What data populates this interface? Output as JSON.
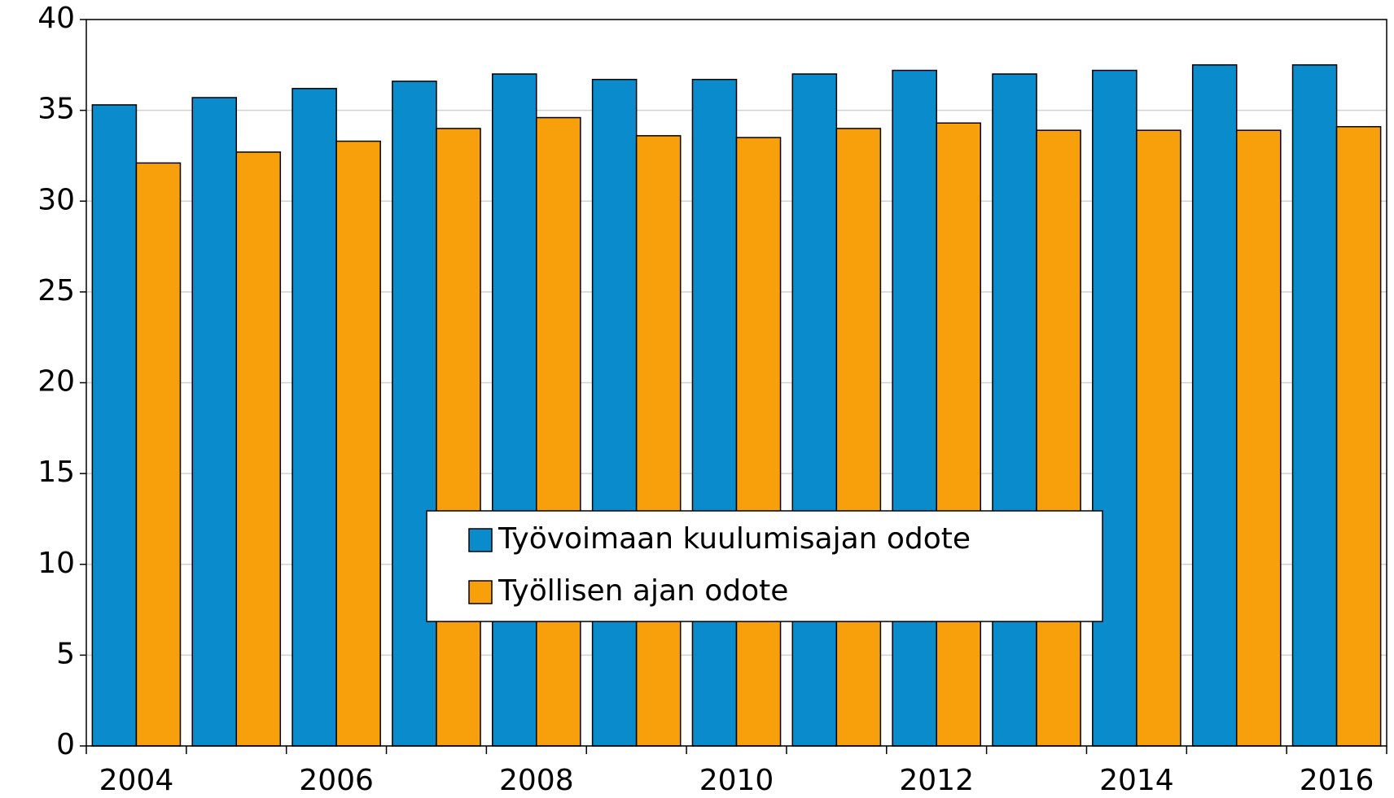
{
  "chart_data": {
    "type": "bar",
    "categories": [
      "2004",
      null,
      "2006",
      null,
      "2008",
      null,
      "2010",
      null,
      "2012",
      null,
      "2014",
      null,
      "2016"
    ],
    "series": [
      {
        "name": "Työvoimaan kuulumisajan odote",
        "color": "#0a8ccc",
        "values": [
          35.3,
          35.7,
          36.2,
          36.6,
          37.0,
          36.7,
          36.7,
          37.0,
          37.2,
          37.0,
          37.2,
          37.5,
          37.5
        ]
      },
      {
        "name": "Työllisen ajan odote",
        "color": "#f8a00c",
        "values": [
          32.1,
          32.7,
          33.3,
          34.0,
          34.6,
          33.6,
          33.5,
          34.0,
          34.3,
          33.9,
          33.9,
          33.9,
          34.1
        ]
      }
    ],
    "ylim": [
      0,
      40
    ],
    "yticks": [
      0,
      5,
      10,
      15,
      20,
      25,
      30,
      35,
      40
    ],
    "grid": true
  }
}
